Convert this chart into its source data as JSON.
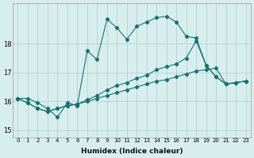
{
  "xlabel": "Humidex (Indice chaleur)",
  "background_color": "#d8eeee",
  "grid_color": "#aacccc",
  "line_color": "#1a7070",
  "xlim": [
    -0.5,
    23.5
  ],
  "ylim": [
    14.75,
    19.4
  ],
  "yticks": [
    15,
    16,
    17,
    18
  ],
  "xticks": [
    0,
    1,
    2,
    3,
    4,
    5,
    6,
    7,
    8,
    9,
    10,
    11,
    12,
    13,
    14,
    15,
    16,
    17,
    18,
    19,
    20,
    21,
    22,
    23
  ],
  "series1": {
    "x": [
      0,
      1,
      2,
      3,
      4,
      5,
      6,
      7,
      8,
      9,
      10,
      11,
      12,
      13,
      14,
      15,
      16,
      17,
      18,
      19,
      20,
      21,
      22,
      23
    ],
    "y": [
      16.1,
      16.1,
      15.95,
      15.75,
      15.45,
      15.95,
      15.85,
      17.75,
      17.45,
      18.85,
      18.55,
      18.15,
      18.6,
      18.75,
      18.9,
      18.95,
      18.75,
      18.25,
      18.2,
      17.25,
      16.85,
      16.6,
      16.65,
      16.7
    ]
  },
  "series2": {
    "x": [
      0,
      1,
      2,
      3,
      4,
      5,
      6,
      7,
      8,
      9,
      10,
      11,
      12,
      13,
      14,
      15,
      16,
      17,
      18,
      19,
      20,
      21,
      22,
      23
    ],
    "y": [
      16.1,
      15.95,
      15.75,
      15.65,
      15.75,
      15.85,
      15.9,
      16.05,
      16.2,
      16.4,
      16.55,
      16.65,
      16.8,
      16.9,
      17.1,
      17.2,
      17.3,
      17.5,
      18.1,
      17.25,
      16.85,
      16.6,
      16.65,
      16.7
    ]
  },
  "series3": {
    "x": [
      0,
      1,
      2,
      3,
      4,
      5,
      6,
      7,
      8,
      9,
      10,
      11,
      12,
      13,
      14,
      15,
      16,
      17,
      18,
      19,
      20,
      21,
      22,
      23
    ],
    "y": [
      16.1,
      15.95,
      15.75,
      15.65,
      15.75,
      15.85,
      15.9,
      16.0,
      16.1,
      16.2,
      16.3,
      16.4,
      16.5,
      16.6,
      16.7,
      16.75,
      16.85,
      16.95,
      17.05,
      17.1,
      17.15,
      16.6,
      16.65,
      16.7
    ]
  }
}
